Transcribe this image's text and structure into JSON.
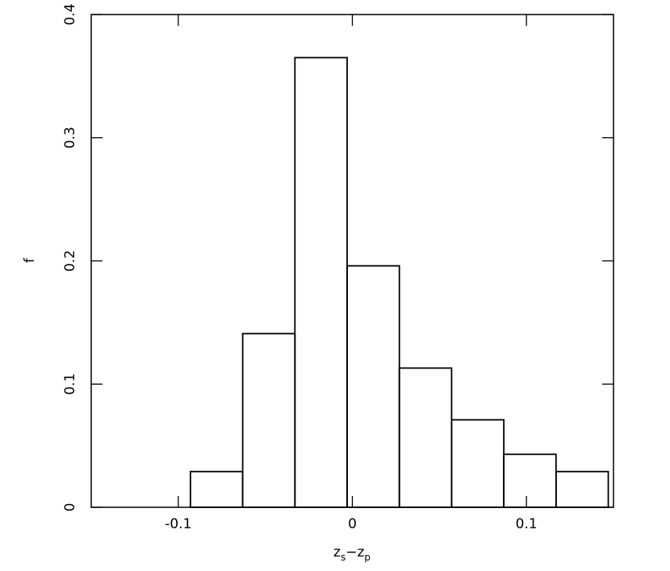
{
  "chart_data": {
    "type": "histogram",
    "bins": [
      -0.093,
      -0.063,
      -0.033,
      -0.003,
      0.027,
      0.057,
      0.087,
      0.117,
      0.147
    ],
    "values": [
      0.029,
      0.141,
      0.365,
      0.196,
      0.113,
      0.071,
      0.043,
      0.029
    ],
    "xlim": [
      -0.15,
      0.15
    ],
    "xticks": [
      -0.1,
      0,
      0.1
    ],
    "ylim": [
      0,
      0.4
    ],
    "yticks": [
      0,
      0.1,
      0.2,
      0.3,
      0.4
    ],
    "xlabel": [
      "z",
      "s",
      "−z",
      "p"
    ],
    "ylabel": "f",
    "color": "#000000",
    "grid": false
  }
}
